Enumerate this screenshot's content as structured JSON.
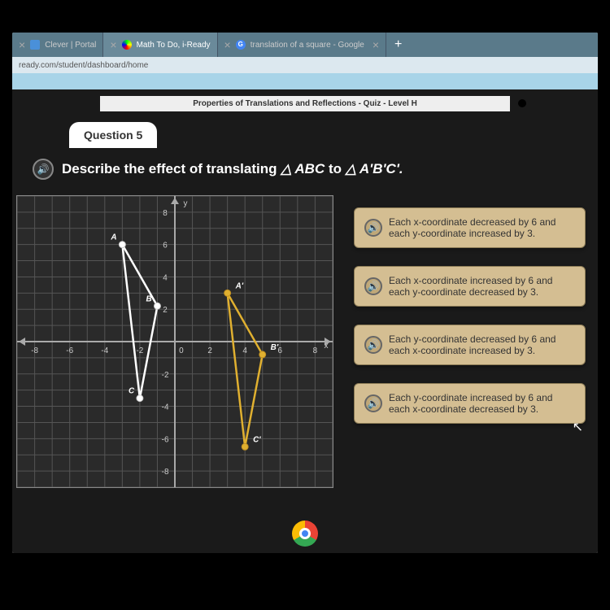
{
  "browser": {
    "tabs": [
      {
        "label": "Clever | Portal",
        "icon": "clever",
        "active": false
      },
      {
        "label": "Math To Do, i-Ready",
        "icon": "iready",
        "active": true
      },
      {
        "label": "translation of a square - Google",
        "icon": "google",
        "active": false
      }
    ],
    "url": "ready.com/student/dashboard/home"
  },
  "lesson": {
    "title": "Properties of Translations and Reflections - Quiz - Level H",
    "question_number": "Question 5",
    "prompt_prefix": "Describe the effect of translating ",
    "prompt_tri1": "△ ABC",
    "prompt_mid": " to ",
    "prompt_tri2": "△ A'B'C'.",
    "answers": [
      "Each x-coordinate decreased by 6 and each y-coordinate increased by 3.",
      "Each x-coordinate increased by 6 and each y-coordinate decreased by 3.",
      "Each y-coordinate decreased by 6 and each x-coordinate increased by 3.",
      "Each y-coordinate increased by 6 and each x-coordinate decreased by 3."
    ]
  },
  "chart": {
    "xlim": [
      -9,
      9
    ],
    "ylim": [
      -9,
      9
    ],
    "xticks": [
      -8,
      -6,
      -4,
      -2,
      0,
      2,
      4,
      6,
      8
    ],
    "yticks": [
      -8,
      -6,
      -4,
      -2,
      2,
      4,
      6,
      8
    ],
    "triangle_abc": {
      "color": "#ffffff",
      "vertices": {
        "A": [
          -3,
          6
        ],
        "B": [
          -1,
          2.2
        ],
        "C": [
          -2,
          -3.5
        ]
      }
    },
    "triangle_aprime": {
      "color": "#e0b030",
      "vertices": {
        "A'": [
          3,
          3
        ],
        "B'": [
          5,
          -0.8
        ],
        "C'": [
          4,
          -6.5
        ]
      }
    },
    "bg": "#2a2a2a",
    "grid_color": "#555555",
    "axis_color": "#aaaaaa"
  }
}
